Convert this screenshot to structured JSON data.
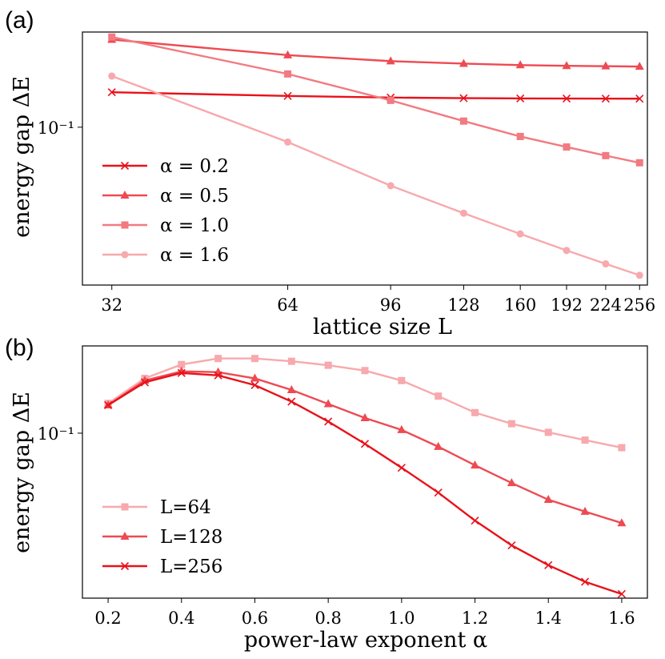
{
  "colors": {
    "strong": "#e8121b",
    "mid": "#ee4a52",
    "soft": "#f27a80",
    "light": "#f7a9ad"
  },
  "chart_data": [
    {
      "panel": "(a)",
      "type": "line",
      "xscale": "log",
      "yscale": "log",
      "xlabel": "lattice size L",
      "ylabel": "energy gap ΔE",
      "x": [
        32,
        64,
        96,
        128,
        160,
        192,
        224,
        256
      ],
      "xticks": [
        "32",
        "64",
        "96",
        "128",
        "160",
        "192",
        "224",
        "256"
      ],
      "ytick_label": "10⁻¹",
      "ytick_value": 0.1,
      "legend_position": "lower-left",
      "series": [
        {
          "name": "α = 0.2",
          "marker": "x",
          "color": "#e8121b",
          "values": [
            0.155,
            0.148,
            0.145,
            0.144,
            0.1435,
            0.1433,
            0.1431,
            0.143
          ]
        },
        {
          "name": "α = 0.5",
          "marker": "triangle",
          "color": "#ee4a52",
          "values": [
            0.3,
            0.247,
            0.229,
            0.222,
            0.218,
            0.216,
            0.215,
            0.214
          ]
        },
        {
          "name": "α = 1.0",
          "marker": "square",
          "color": "#f27a80",
          "values": [
            0.31,
            0.195,
            0.14,
            0.108,
            0.089,
            0.078,
            0.07,
            0.064
          ]
        },
        {
          "name": "α = 1.6",
          "marker": "circle",
          "color": "#f7a9ad",
          "values": [
            0.19,
            0.083,
            0.048,
            0.034,
            0.0262,
            0.0213,
            0.018,
            0.0156
          ]
        }
      ]
    },
    {
      "panel": "(b)",
      "type": "line",
      "xscale": "linear",
      "yscale": "log",
      "xlabel": "power-law exponent  α",
      "ylabel": "energy gap ΔE",
      "x": [
        0.2,
        0.3,
        0.4,
        0.5,
        0.6,
        0.7,
        0.8,
        0.9,
        1.0,
        1.1,
        1.2,
        1.3,
        1.4,
        1.5,
        1.6
      ],
      "xticks": [
        "0.2",
        "0.4",
        "0.6",
        "0.8",
        "1.0",
        "1.2",
        "1.4",
        "1.6"
      ],
      "xtick_values": [
        0.2,
        0.4,
        0.6,
        0.8,
        1.0,
        1.2,
        1.4,
        1.6
      ],
      "xlim": [
        0.13,
        1.67
      ],
      "ytick_label": "10⁻¹",
      "ytick_value": 0.1,
      "legend_position": "lower-left",
      "series": [
        {
          "name": "L=64",
          "marker": "square",
          "color": "#f7a9ad",
          "values": [
            0.143,
            0.193,
            0.228,
            0.245,
            0.245,
            0.237,
            0.226,
            0.212,
            0.188,
            0.156,
            0.128,
            0.112,
            0.101,
            0.092,
            0.084
          ]
        },
        {
          "name": "L=128",
          "marker": "triangle",
          "color": "#ee4a52",
          "values": [
            0.14,
            0.188,
            0.21,
            0.208,
            0.193,
            0.168,
            0.142,
            0.12,
            0.104,
            0.085,
            0.068,
            0.055,
            0.045,
            0.039,
            0.034
          ]
        },
        {
          "name": "L=256",
          "marker": "x",
          "color": "#e8121b",
          "values": [
            0.14,
            0.184,
            0.206,
            0.2,
            0.178,
            0.146,
            0.115,
            0.088,
            0.066,
            0.049,
            0.035,
            0.026,
            0.0205,
            0.0168,
            0.0145
          ]
        }
      ]
    }
  ]
}
